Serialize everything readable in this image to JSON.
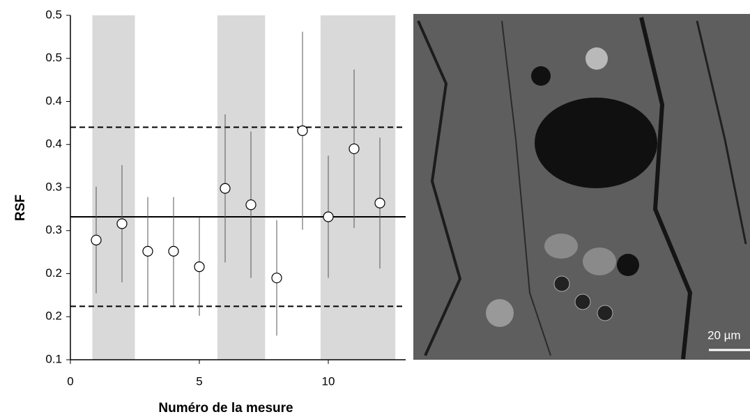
{
  "chart_data": {
    "type": "scatter",
    "x_label": "Numéro de la mesure",
    "y_label": "RSF",
    "x": [
      1,
      2,
      3,
      4,
      5,
      6,
      7,
      8,
      9,
      10,
      11,
      12
    ],
    "series": [
      {
        "color": "#ffffff",
        "values": [
          0.239,
          0.258,
          0.226,
          0.226,
          0.208,
          0.299,
          0.28,
          0.195,
          0.366,
          0.266,
          0.345,
          0.282
        ],
        "errors": [
          0.062,
          0.068,
          0.063,
          0.063,
          0.057,
          0.086,
          0.085,
          0.067,
          0.115,
          0.071,
          0.092,
          0.076
        ]
      }
    ],
    "xlim": [
      0,
      13
    ],
    "xticks": [
      0,
      5,
      10
    ],
    "ylim": [
      0.1,
      0.5
    ],
    "yticks": [
      {
        "value": 0.1,
        "label": "0.1"
      },
      {
        "value": 0.15,
        "label": "0.2"
      },
      {
        "value": 0.2,
        "label": "0.2"
      },
      {
        "value": 0.25,
        "label": "0.3"
      },
      {
        "value": 0.3,
        "label": "0.3"
      },
      {
        "value": 0.35,
        "label": "0.4"
      },
      {
        "value": 0.4,
        "label": "0.4"
      },
      {
        "value": 0.45,
        "label": "0.5"
      },
      {
        "value": 0.5,
        "label": "0.5"
      }
    ],
    "bands": [
      [
        0.85,
        2.5
      ],
      [
        5.7,
        7.55
      ],
      [
        9.7,
        12.6
      ]
    ],
    "band_color": "#d9d9d9",
    "hlines": [
      {
        "value": 0.266,
        "style": "solid"
      },
      {
        "value": 0.37,
        "style": "dashed"
      },
      {
        "value": 0.162,
        "style": "dashed"
      }
    ]
  },
  "image": {
    "scale_bar_label": "20 µm"
  }
}
